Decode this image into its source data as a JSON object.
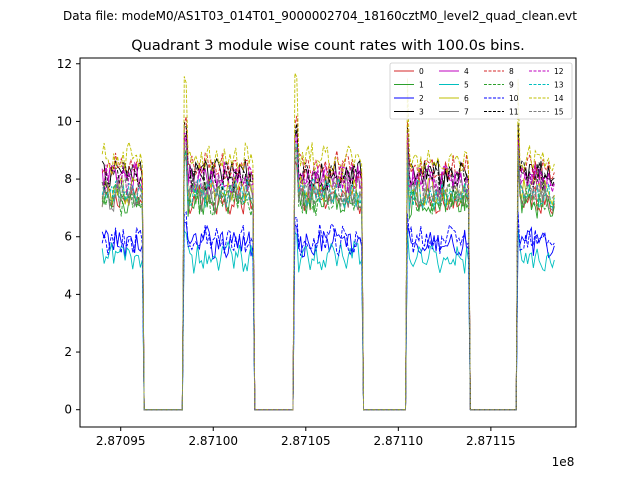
{
  "suptitle": "Data file: modeM0/AS1T03_014T01_9000002704_18160cztM0_level2_quad_clean.evt",
  "chart_data": {
    "type": "line",
    "title": "Quadrant 3 module wise count rates with 100.0s bins.",
    "xlabel": "",
    "ylabel": "",
    "x_offset_label": "1e8",
    "x_ticks": [
      {
        "value": 2.87095,
        "label": "2.87095"
      },
      {
        "value": 2.871,
        "label": "2.87100"
      },
      {
        "value": 2.87105,
        "label": "2.87105"
      },
      {
        "value": 2.8711,
        "label": "2.87110"
      },
      {
        "value": 2.87115,
        "label": "2.87115"
      }
    ],
    "y_ticks": [
      {
        "value": 0,
        "label": "0"
      },
      {
        "value": 2,
        "label": "2"
      },
      {
        "value": 4,
        "label": "4"
      },
      {
        "value": 6,
        "label": "6"
      },
      {
        "value": 8,
        "label": "8"
      },
      {
        "value": 10,
        "label": "10"
      },
      {
        "value": 12,
        "label": "12"
      }
    ],
    "xlim": [
      2.870928,
      2.871196
    ],
    "ylim": [
      -0.6,
      12.2
    ],
    "grid": false,
    "legend_location": "upper right",
    "legend_columns": 4,
    "time_span": [
      2.87094,
      2.871185
    ],
    "on_intervals": [
      [
        2.87094,
        2.870962
      ],
      [
        2.870984,
        2.871022
      ],
      [
        2.871044,
        2.871081
      ],
      [
        2.871104,
        2.871138
      ],
      [
        2.871164,
        2.871185
      ]
    ],
    "series": [
      {
        "name": "0",
        "color": "#d62728",
        "dash": "solid",
        "level": 7.3,
        "spike": 8.6
      },
      {
        "name": "1",
        "color": "#2ca02c",
        "dash": "solid",
        "level": 7.2,
        "spike": 8.9
      },
      {
        "name": "2",
        "color": "#0000ff",
        "dash": "solid",
        "level": 5.8,
        "spike": 6.4
      },
      {
        "name": "3",
        "color": "#000000",
        "dash": "solid",
        "level": 8.2,
        "spike": 9.5
      },
      {
        "name": "4",
        "color": "#bf00bf",
        "dash": "solid",
        "level": 8.0,
        "spike": 9.3
      },
      {
        "name": "5",
        "color": "#00bfbf",
        "dash": "solid",
        "level": 5.3,
        "spike": 6.2
      },
      {
        "name": "6",
        "color": "#bfbf00",
        "dash": "solid",
        "level": 7.6,
        "spike": 9.0
      },
      {
        "name": "7",
        "color": "#7f7f7f",
        "dash": "solid",
        "level": 7.4,
        "spike": 8.8
      },
      {
        "name": "8",
        "color": "#d62728",
        "dash": "dashed",
        "level": 8.4,
        "spike": 10.0
      },
      {
        "name": "9",
        "color": "#2ca02c",
        "dash": "dashed",
        "level": 7.3,
        "spike": 8.8
      },
      {
        "name": "10",
        "color": "#0000ff",
        "dash": "dashed",
        "level": 5.9,
        "spike": 6.8
      },
      {
        "name": "11",
        "color": "#000000",
        "dash": "dashed",
        "level": 8.1,
        "spike": 9.8
      },
      {
        "name": "12",
        "color": "#bf00bf",
        "dash": "dashed",
        "level": 8.0,
        "spike": 9.6
      },
      {
        "name": "13",
        "color": "#00bfbf",
        "dash": "dashed",
        "level": 7.5,
        "spike": 9.0
      },
      {
        "name": "14",
        "color": "#bfbf00",
        "dash": "dashed",
        "level": 8.7,
        "spike": 11.5
      },
      {
        "name": "15",
        "color": "#7f7f7f",
        "dash": "dashed",
        "level": 7.6,
        "spike": 9.1
      }
    ]
  }
}
